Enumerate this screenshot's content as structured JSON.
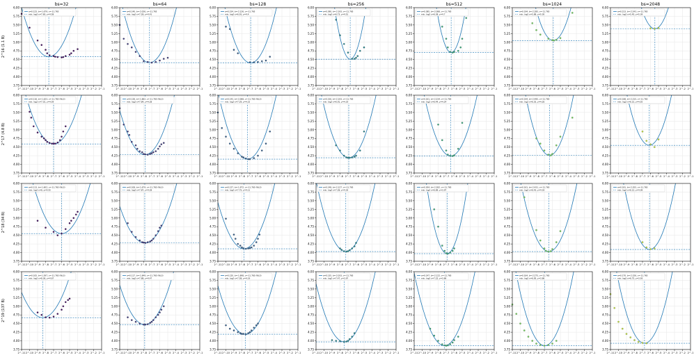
{
  "chart_data": {
    "type": "scatter",
    "layout": "4x7 grid of subplots",
    "column_titles": [
      "bs=32",
      "bs=64",
      "bs=128",
      "bs=256",
      "bs=512",
      "bs=1024",
      "bs=2048"
    ],
    "row_ylabels": [
      "2^16 (1.1 B)",
      "2^17 (4.8 B)",
      "2^18 (34 B)",
      "2^19 (137 B)"
    ],
    "ylim": [
      3.75,
      6.0
    ],
    "yticks": [
      "3.75",
      "4.00",
      "4.25",
      "4.50",
      "4.75",
      "5.00",
      "5.25",
      "5.50",
      "5.75",
      "6.00"
    ],
    "xscale": "log2",
    "xlim_exp": [
      -11,
      -1
    ],
    "xtick_labels": [
      "2^-11",
      "2^-10",
      "2^-9",
      "2^-8",
      "2^-7",
      "2^-6",
      "2^-5",
      "2^-4",
      "2^-3",
      "2^-2",
      "2^-1"
    ],
    "grid": true,
    "legend_position": "top-left",
    "fit_color": "#1f77b4",
    "points_colormap": "viridis",
    "panels": [
      {
        "row": 0,
        "col": 0,
        "legend": [
          "a=0.123, b=-1.679, c=-11.765",
          "min: log2 x=7.65, y=4.58"
        ],
        "a": 0.123,
        "xmin": -7.6,
        "ymin": 4.58,
        "cval": 0.05,
        "x": [
          -11,
          -10,
          -9,
          -8.5,
          -8,
          -7.8,
          -7.5,
          -7,
          -6.8,
          -6.5,
          -6,
          -5.8,
          -5.5,
          -5,
          -4.8,
          -4.5,
          -4
        ],
        "y": [
          5.82,
          5.42,
          5.05,
          4.92,
          4.78,
          4.68,
          4.62,
          4.6,
          4.58,
          4.57,
          4.56,
          4.57,
          4.6,
          4.64,
          4.68,
          4.75,
          4.8
        ]
      },
      {
        "row": 0,
        "col": 1,
        "legend": [
          "a=0.140, b=-2.026, c=-11.765",
          "min: log2 x=7.28, y=4.41"
        ],
        "a": 0.14,
        "xmin": -7.28,
        "ymin": 4.41,
        "cval": 0.18,
        "x": [
          -11,
          -10.5,
          -10,
          -9.5,
          -9,
          -8.5,
          -8,
          -7.5,
          -7,
          -6.5,
          -6,
          -5.5,
          -5
        ],
        "y": [
          5.5,
          5.1,
          4.95,
          4.85,
          4.72,
          4.6,
          4.45,
          4.43,
          4.41,
          4.43,
          4.47,
          4.52,
          4.55
        ]
      },
      {
        "row": 0,
        "col": 2,
        "legend": [
          "a=0.154, b=-2.126, c=-11.765",
          "min: log2 x=6.91, y=4.4"
        ],
        "a": 0.154,
        "xmin": -6.9,
        "ymin": 4.4,
        "cval": 0.3,
        "x": [
          -10,
          -9.5,
          -9,
          -8.5,
          -7,
          -6.5,
          -6,
          -5.5,
          -5,
          -4.5
        ],
        "y": [
          5.45,
          5.38,
          4.78,
          4.68,
          4.42,
          4.42,
          4.43,
          4.45,
          4.47,
          4.58
        ]
      },
      {
        "row": 0,
        "col": 3,
        "legend": [
          "a=0.390, b=-2.193, c=-11.765",
          "min: log2 x=6.73, y=4.51"
        ],
        "a": 0.39,
        "xmin": -6.73,
        "ymin": 4.51,
        "cval": 0.45,
        "x": [
          -8.5,
          -8,
          -7.5,
          -7,
          -6.5,
          -6.2,
          -6,
          -5.8,
          -5.5,
          -5
        ],
        "y": [
          5.65,
          5.2,
          4.95,
          4.7,
          4.52,
          4.52,
          4.55,
          4.6,
          4.75,
          4.85
        ]
      },
      {
        "row": 0,
        "col": 4,
        "legend": [
          "a=0.385, b=-2.088, c=-11.765",
          "min: log2 x=6.38, y=4.7"
        ],
        "a": 0.385,
        "xmin": -6.38,
        "ymin": 4.7,
        "cval": 0.6,
        "x": [
          -8,
          -7.5,
          -7,
          -6.8,
          -6.5,
          -6.2,
          -6,
          -5.5,
          -5.2,
          -5,
          -4.5
        ],
        "y": [
          5.92,
          5.45,
          5.1,
          4.85,
          4.72,
          4.7,
          4.72,
          4.75,
          4.85,
          5.1,
          5.7
        ]
      },
      {
        "row": 0,
        "col": 5,
        "legend": [
          "a=0.194, b=-2.285, c=-11.765",
          "min: log2 x=5.88, y=5.05"
        ],
        "a": 0.194,
        "xmin": -5.88,
        "ymin": 5.05,
        "cval": 0.78,
        "x": [
          -9,
          -8.5,
          -8,
          -7.5,
          -6.5,
          -6,
          -5.8,
          -5.5,
          -5,
          -3.5
        ],
        "y": [
          5.88,
          5.55,
          5.35,
          5.22,
          5.1,
          5.06,
          5.05,
          5.07,
          5.12,
          5.85
        ]
      },
      {
        "row": 0,
        "col": 6,
        "legend": [
          "a=0.213, b=-2.243, c=-11.765",
          "min: log2 x=5.45, y=5.39"
        ],
        "a": 0.213,
        "xmin": -5.45,
        "ymin": 5.39,
        "cval": 0.9,
        "x": [
          -6,
          -5.5,
          -5
        ],
        "y": [
          5.4,
          5.39,
          5.41
        ]
      },
      {
        "row": 1,
        "col": 0,
        "legend": [
          "a=0.116, b=-1.623, c=-11.765 (WLS)",
          "min: log2 x=7.01, y=4.59"
        ],
        "a": 0.116,
        "xmin": -7.0,
        "ymin": 4.59,
        "cval": 0.05,
        "x": [
          -10,
          -9.8,
          -9.5,
          -9,
          -8.5,
          -8.2,
          -8,
          -7.8,
          -7.5,
          -7.2,
          -7,
          -6.8,
          -6.5,
          -6.2,
          -6,
          -5.8,
          -5.5
        ],
        "y": [
          5.52,
          5.35,
          5.1,
          4.92,
          4.8,
          4.75,
          4.7,
          4.65,
          4.62,
          4.6,
          4.6,
          4.6,
          4.63,
          4.7,
          4.8,
          4.95,
          5.1
        ]
      },
      {
        "row": 1,
        "col": 1,
        "legend": [
          "a=0.128, b=-1.882, c=-11.765 (WLS)",
          "min: log2 x=7.84, y=4.28"
        ],
        "a": 0.128,
        "xmin": -7.84,
        "ymin": 4.28,
        "cval": 0.18,
        "x": [
          -11,
          -10.5,
          -10,
          -9.8,
          -9.5,
          -9,
          -8.8,
          -8.5,
          -8.2,
          -8,
          -7.8,
          -7.5,
          -7.2,
          -7,
          -6.8,
          -6.5,
          -6.2,
          -6,
          -5.8,
          -5.5
        ],
        "y": [
          5.62,
          5.15,
          4.95,
          4.85,
          4.65,
          4.55,
          4.45,
          4.38,
          4.35,
          4.3,
          4.29,
          4.28,
          4.3,
          4.32,
          4.35,
          4.38,
          4.45,
          4.52,
          4.58,
          4.62
        ]
      },
      {
        "row": 1,
        "col": 2,
        "legend": [
          "a=0.143, b=-2.088, c=-11.765 (WLS)",
          "min: log2 x=7.29, y=4.15"
        ],
        "a": 0.143,
        "xmin": -7.3,
        "ymin": 4.15,
        "cval": 0.3,
        "x": [
          -11,
          -10.5,
          -10,
          -9.5,
          -9,
          -8.5,
          -8,
          -7.8,
          -7.5,
          -7.2,
          -7,
          -6.5,
          -6,
          -5.5,
          -5,
          -4.5
        ],
        "y": [
          5.5,
          5.05,
          4.8,
          4.6,
          4.45,
          4.32,
          4.22,
          4.2,
          4.17,
          4.15,
          4.15,
          4.18,
          4.25,
          4.4,
          4.6,
          4.95
        ]
      },
      {
        "row": 1,
        "col": 3,
        "legend": [
          "a=0.156, b=-2.193, c=-11.765",
          "min: log2 x=6.91, y=4.19"
        ],
        "a": 0.156,
        "xmin": -6.91,
        "ymin": 4.19,
        "cval": 0.45,
        "x": [
          -8.5,
          -8,
          -7.5,
          -7.2,
          -7,
          -6.8,
          -6.5,
          -6.2,
          -6,
          -5.5,
          -5
        ],
        "y": [
          4.55,
          4.4,
          4.25,
          4.2,
          4.19,
          4.19,
          4.2,
          4.22,
          4.25,
          4.4,
          4.95
        ]
      },
      {
        "row": 1,
        "col": 4,
        "legend": [
          "a=0.161, b=-2.234, c=-11.765",
          "min: log2 x=6.44, y=4.24"
        ],
        "a": 0.161,
        "xmin": -6.44,
        "ymin": 4.24,
        "cval": 0.6,
        "x": [
          -8,
          -7.5,
          -7,
          -6.8,
          -6.5,
          -6.2,
          -6,
          -5.5,
          -5
        ],
        "y": [
          5.15,
          4.7,
          4.4,
          4.28,
          4.25,
          4.24,
          4.26,
          4.45,
          5.2
        ]
      },
      {
        "row": 1,
        "col": 5,
        "legend": [
          "a=0.194, b=-2.495, c=-11.765",
          "min: log2 x=6.35, y=4.26"
        ],
        "a": 0.194,
        "xmin": -6.35,
        "ymin": 4.26,
        "cval": 0.78,
        "x": [
          -8,
          -7.5,
          -7,
          -6.5,
          -6.2,
          -6,
          -5.5,
          -5,
          -3.5
        ],
        "y": [
          4.75,
          4.6,
          4.4,
          4.28,
          4.26,
          4.3,
          4.55,
          4.8,
          5.35
        ]
      },
      {
        "row": 1,
        "col": 6,
        "legend": [
          "a=0.188, b=-2.315, c=-11.765",
          "min: log2 x=6.15, y=4.55"
        ],
        "a": 0.188,
        "xmin": -6.15,
        "ymin": 4.55,
        "cval": 0.9,
        "x": [
          -7,
          -6.5,
          -6,
          -5.5,
          -5
        ],
        "y": [
          4.95,
          4.68,
          4.58,
          4.5,
          4.72
        ]
      },
      {
        "row": 2,
        "col": 0,
        "legend": [
          "a=0.113, b=-1.602, c=-11.765 (WLS)",
          "min: log2 x=6, y=4.55"
        ],
        "a": 0.113,
        "xmin": -6.0,
        "ymin": 4.55,
        "cval": 0.05,
        "x": [
          -9,
          -8,
          -7,
          -6.5,
          -6,
          -5.5,
          -5,
          -4.8,
          -4.5,
          -4.2,
          -4
        ],
        "y": [
          4.92,
          4.72,
          4.6,
          4.5,
          4.55,
          4.68,
          4.85,
          4.92,
          5.0,
          5.1,
          5.18
        ]
      },
      {
        "row": 2,
        "col": 1,
        "legend": [
          "a=0.108, b=-1.679, c=-11.765 (WLS)",
          "min: log2 x=7.87, y=4.28"
        ],
        "a": 0.108,
        "xmin": -7.87,
        "ymin": 4.28,
        "cval": 0.18,
        "x": [
          -10,
          -9.5,
          -9,
          -8.5,
          -8.2,
          -8,
          -7.8,
          -7.5,
          -7.2,
          -7,
          -6.8,
          -6.5,
          -6.2,
          -6,
          -5.8
        ],
        "y": [
          4.85,
          4.6,
          4.45,
          4.35,
          4.3,
          4.29,
          4.28,
          4.3,
          4.32,
          4.35,
          4.4,
          4.5,
          4.62,
          4.72,
          4.78
        ]
      },
      {
        "row": 2,
        "col": 2,
        "legend": [
          "a=0.127, b=-1.972, c=-11.765 (WLS)",
          "min: log2 x=7.75, y=4.11"
        ],
        "a": 0.127,
        "xmin": -7.75,
        "ymin": 4.11,
        "cval": 0.3,
        "x": [
          -10,
          -9,
          -8.8,
          -8.5,
          -8.2,
          -8,
          -7.8,
          -7.5,
          -7.2,
          -7,
          -6.8,
          -6.5,
          -6.2,
          -6,
          -5.8
        ],
        "y": [
          4.98,
          4.52,
          4.4,
          4.25,
          4.2,
          4.15,
          4.12,
          4.11,
          4.12,
          4.13,
          4.15,
          4.2,
          4.3,
          4.4,
          4.52
        ]
      },
      {
        "row": 2,
        "col": 3,
        "legend": [
          "a=0.148, b=-2.127, c=-11.765",
          "min: log2 x=7.28, y=4.03"
        ],
        "a": 0.148,
        "xmin": -7.28,
        "ymin": 4.03,
        "cval": 0.45,
        "x": [
          -8,
          -7.8,
          -7.5,
          -7.2,
          -7,
          -6.8,
          -6.5,
          -6.2,
          -6
        ],
        "y": [
          4.12,
          4.08,
          4.04,
          4.03,
          4.04,
          4.07,
          4.12,
          4.18,
          4.28
        ]
      },
      {
        "row": 2,
        "col": 4,
        "legend": [
          "a=0.304, b=-2.282, c=-11.765",
          "min: log2 x=6.89, y=3.97"
        ],
        "a": 0.304,
        "xmin": -6.89,
        "ymin": 3.97,
        "cval": 0.6,
        "x": [
          -8.5,
          -8,
          -7.5,
          -7.2,
          -7,
          -6.8,
          -6.5,
          -6.2,
          -6
        ],
        "y": [
          5.25,
          4.75,
          4.2,
          4.05,
          3.98,
          3.97,
          4.0,
          4.05,
          4.12
        ]
      },
      {
        "row": 2,
        "col": 5,
        "legend": [
          "a=0.161, b=-2.431, c=-11.765",
          "min: log2 x=6.43, y=4.03"
        ],
        "a": 0.161,
        "xmin": -6.43,
        "ymin": 4.03,
        "cval": 0.78,
        "x": [
          -9.5,
          -8,
          -7.5,
          -7,
          -6.8,
          -6.5,
          -6.2,
          -6,
          -5.5,
          -5
        ],
        "y": [
          5.6,
          4.65,
          4.35,
          4.12,
          4.05,
          4.03,
          4.04,
          4.1,
          4.3,
          4.62
        ]
      },
      {
        "row": 2,
        "col": 6,
        "legend": [
          "a=0.181, b=-2.355, c=-11.765",
          "min: log2 x=6.12, y=4.09"
        ],
        "a": 0.181,
        "xmin": -6.12,
        "ymin": 4.09,
        "cval": 0.9,
        "x": [
          -7,
          -6.5,
          -6,
          -5.5
        ],
        "y": [
          4.3,
          4.15,
          4.1,
          4.12
        ]
      },
      {
        "row": 3,
        "col": 0,
        "legend": [
          "a=0.105, b=-1.597, c=-11.765 (WLS)",
          "min: log2 x=8.36, y=4.67"
        ],
        "a": 0.105,
        "xmin": -8.36,
        "ymin": 4.67,
        "cval": 0.05,
        "x": [
          -9,
          -8.5,
          -8,
          -7.5,
          -7,
          -6.5,
          -6,
          -5.8,
          -5.5,
          -5.2,
          -5
        ],
        "y": [
          4.82,
          4.75,
          4.68,
          4.67,
          4.7,
          4.78,
          4.9,
          5.0,
          5.12,
          5.18,
          5.22
        ]
      },
      {
        "row": 3,
        "col": 1,
        "legend": [
          "a=0.117, b=-1.849, c=-11.765 (WLS)",
          "min: log2 x=7.88, y=4.47"
        ],
        "a": 0.117,
        "xmin": -7.88,
        "ymin": 4.47,
        "cval": 0.18,
        "x": [
          -10,
          -9.5,
          -9,
          -8.5,
          -8,
          -7.8,
          -7.5,
          -7.2,
          -7,
          -6.8,
          -6.5,
          -6.2,
          -6,
          -5.8,
          -5.5
        ],
        "y": [
          4.68,
          4.6,
          4.55,
          4.5,
          4.47,
          4.47,
          4.48,
          4.52,
          4.55,
          4.6,
          4.68,
          4.75,
          4.82,
          4.9,
          5.0
        ]
      },
      {
        "row": 3,
        "col": 2,
        "legend": [
          "a=0.120, b=-1.898, c=-11.765 (WLS)",
          "min: log2 x=7.58, y=4.19"
        ],
        "a": 0.12,
        "xmin": -7.58,
        "ymin": 4.19,
        "cval": 0.3,
        "x": [
          -10,
          -9.5,
          -9,
          -8.5,
          -8.2,
          -8,
          -7.8,
          -7.5,
          -7.2,
          -7,
          -6.8,
          -6.5,
          -6.2,
          -6
        ],
        "y": [
          4.45,
          4.35,
          4.3,
          4.25,
          4.22,
          4.2,
          4.2,
          4.19,
          4.22,
          4.25,
          4.3,
          4.38,
          4.45,
          4.5
        ]
      },
      {
        "row": 3,
        "col": 3,
        "legend": [
          "a=0.135, b=-2.033, c=-11.765",
          "min: log2 x=7.47, y=3.97"
        ],
        "a": 0.135,
        "xmin": -7.47,
        "ymin": 3.97,
        "cval": 0.45,
        "x": [
          -9,
          -8.5,
          -8,
          -7.5,
          -7.2,
          -7,
          -6.8,
          -6.5,
          -6.2
        ],
        "y": [
          4.02,
          4.0,
          3.99,
          3.97,
          3.98,
          4.0,
          4.05,
          4.12,
          4.22
        ]
      },
      {
        "row": 3,
        "col": 4,
        "legend": [
          "a=0.147, b=-2.122, c=-11.765",
          "min: log2 x=7.22, y=3.86"
        ],
        "a": 0.147,
        "xmin": -7.22,
        "ymin": 3.86,
        "cval": 0.6,
        "x": [
          -9,
          -8.5,
          -8,
          -7.5,
          -7.2,
          -7,
          -6.8,
          -6.5,
          -6.2,
          -6,
          -5.5
        ],
        "y": [
          4.35,
          4.15,
          4.0,
          3.9,
          3.87,
          3.86,
          3.87,
          3.9,
          3.95,
          4.02,
          4.12
        ]
      },
      {
        "row": 3,
        "col": 5,
        "legend": [
          "a=0.164, b=-2.275, c=-11.765",
          "min: log2 x=6.95, y=3.86"
        ],
        "a": 0.164,
        "xmin": -6.95,
        "ymin": 3.86,
        "cval": 0.78,
        "x": [
          -11,
          -10.5,
          -10,
          -9.5,
          -9,
          -8.5,
          -8,
          -7.5,
          -7,
          -6.5,
          -6,
          -5.5
        ],
        "y": [
          5.05,
          4.78,
          4.5,
          4.3,
          4.12,
          4.0,
          3.92,
          3.88,
          3.86,
          3.88,
          3.92,
          4.0
        ]
      },
      {
        "row": 3,
        "col": 6,
        "legend": [
          "a=0.170, b=-2.326, c=-11.765",
          "min: log2 x=6.75, y=3.93"
        ],
        "a": 0.17,
        "xmin": -6.75,
        "ymin": 3.93,
        "cval": 0.9,
        "x": [
          -11,
          -10.5,
          -10,
          -9.5,
          -9,
          -8.5,
          -8,
          -7.5,
          -7,
          -6.5
        ],
        "y": [
          5.35,
          4.95,
          4.55,
          4.35,
          4.2,
          4.1,
          4.02,
          3.97,
          3.94,
          3.93
        ]
      }
    ]
  }
}
